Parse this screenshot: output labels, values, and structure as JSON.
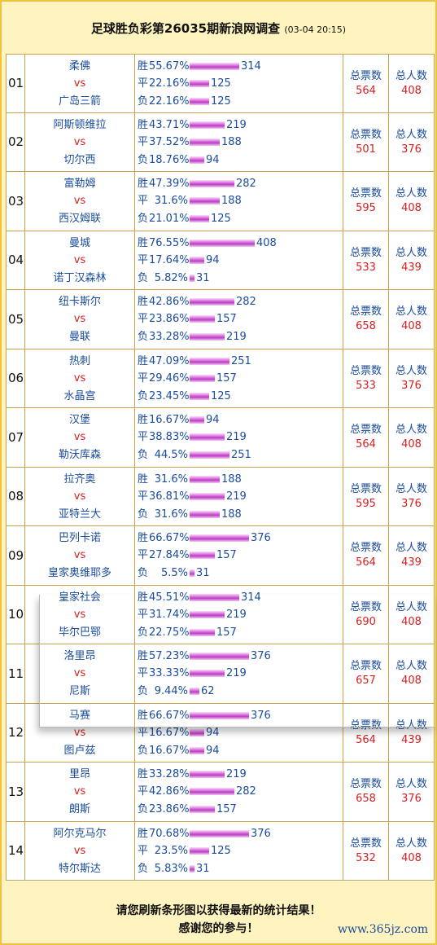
{
  "header": {
    "title": "足球胜负彩第26035期新浪网调查",
    "time": "(03-04 20:15)"
  },
  "labels": {
    "vs": "vs",
    "win": "胜",
    "draw": "平",
    "lose": "负",
    "total_votes": "总票数",
    "total_people": "总人数"
  },
  "matches": [
    {
      "no": "01",
      "home": "柔佛",
      "away": "广岛三箭",
      "win_pct": "55.67%",
      "win": 314,
      "draw_pct": "22.16%",
      "draw": 125,
      "lose_pct": "22.16%",
      "lose": 125,
      "votes": "564",
      "people": "408"
    },
    {
      "no": "02",
      "home": "阿斯顿维拉",
      "away": "切尔西",
      "win_pct": "43.71%",
      "win": 219,
      "draw_pct": "37.52%",
      "draw": 188,
      "lose_pct": "18.76%",
      "lose": 94,
      "votes": "501",
      "people": "376"
    },
    {
      "no": "03",
      "home": "富勒姆",
      "away": "西汉姆联",
      "win_pct": "47.39%",
      "win": 282,
      "draw_pct": "31.6%",
      "draw": 188,
      "lose_pct": "21.01%",
      "lose": 125,
      "votes": "595",
      "people": "408"
    },
    {
      "no": "04",
      "home": "曼城",
      "away": "诺丁汉森林",
      "win_pct": "76.55%",
      "win": 408,
      "draw_pct": "17.64%",
      "draw": 94,
      "lose_pct": "5.82%",
      "lose": 31,
      "votes": "533",
      "people": "439"
    },
    {
      "no": "05",
      "home": "纽卡斯尔",
      "away": "曼联",
      "win_pct": "42.86%",
      "win": 282,
      "draw_pct": "23.86%",
      "draw": 157,
      "lose_pct": "33.28%",
      "lose": 219,
      "votes": "658",
      "people": "408"
    },
    {
      "no": "06",
      "home": "热刺",
      "away": "水晶宫",
      "win_pct": "47.09%",
      "win": 251,
      "draw_pct": "29.46%",
      "draw": 157,
      "lose_pct": "23.45%",
      "lose": 125,
      "votes": "533",
      "people": "376"
    },
    {
      "no": "07",
      "home": "汉堡",
      "away": "勒沃库森",
      "win_pct": "16.67%",
      "win": 94,
      "draw_pct": "38.83%",
      "draw": 219,
      "lose_pct": "44.5%",
      "lose": 251,
      "votes": "564",
      "people": "408"
    },
    {
      "no": "08",
      "home": "拉齐奥",
      "away": "亚特兰大",
      "win_pct": "31.6%",
      "win": 188,
      "draw_pct": "36.81%",
      "draw": 219,
      "lose_pct": "31.6%",
      "lose": 188,
      "votes": "595",
      "people": "376"
    },
    {
      "no": "09",
      "home": "巴列卡诺",
      "away": "皇家奥维耶多",
      "win_pct": "66.67%",
      "win": 376,
      "draw_pct": "27.84%",
      "draw": 157,
      "lose_pct": "5.5%",
      "lose": 31,
      "votes": "564",
      "people": "439"
    },
    {
      "no": "10",
      "home": "皇家社会",
      "away": "毕尔巴鄂",
      "win_pct": "45.51%",
      "win": 314,
      "draw_pct": "31.74%",
      "draw": 219,
      "lose_pct": "22.75%",
      "lose": 157,
      "votes": "690",
      "people": "408"
    },
    {
      "no": "11",
      "home": "洛里昂",
      "away": "尼斯",
      "win_pct": "57.23%",
      "win": 376,
      "draw_pct": "33.33%",
      "draw": 219,
      "lose_pct": "9.44%",
      "lose": 62,
      "votes": "657",
      "people": "408"
    },
    {
      "no": "12",
      "home": "马赛",
      "away": "图卢兹",
      "win_pct": "66.67%",
      "win": 376,
      "draw_pct": "16.67%",
      "draw": 94,
      "lose_pct": "16.67%",
      "lose": 94,
      "votes": "564",
      "people": "439"
    },
    {
      "no": "13",
      "home": "里昂",
      "away": "朗斯",
      "win_pct": "33.28%",
      "win": 219,
      "draw_pct": "42.86%",
      "draw": 282,
      "lose_pct": "23.86%",
      "lose": 157,
      "votes": "658",
      "people": "376"
    },
    {
      "no": "14",
      "home": "阿尔克马尔",
      "away": "特尔斯达",
      "win_pct": "70.68%",
      "win": 376,
      "draw_pct": "23.5%",
      "draw": 125,
      "lose_pct": "5.83%",
      "lose": 31,
      "votes": "532",
      "people": "408"
    }
  ],
  "footer": {
    "line1": "请您刷新条形图以获得最新的统计结果！",
    "line2": "感谢您的参与！"
  },
  "watermark": "www.365jz.com",
  "colors": {
    "page_bg": "#fff3bf",
    "border": "#c9a347",
    "text_blue": "#1a4c9c",
    "text_red": "#d62020",
    "bar": "#c94bd0"
  }
}
